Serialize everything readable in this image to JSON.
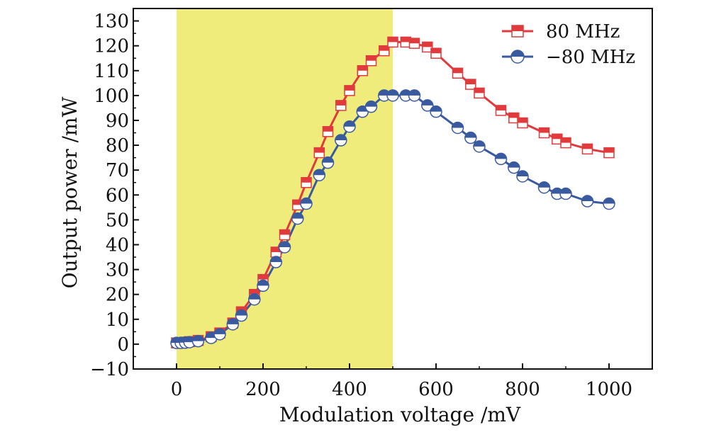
{
  "chart_data": {
    "type": "line",
    "title": "",
    "xlabel": "Modulation voltage /mV",
    "ylabel": "Output power /mW",
    "xlim": [
      -100,
      1100
    ],
    "ylim": [
      -10,
      135
    ],
    "xticks": [
      0,
      200,
      400,
      600,
      800,
      1000
    ],
    "yticks": [
      -10,
      0,
      10,
      20,
      30,
      40,
      50,
      60,
      70,
      80,
      90,
      100,
      110,
      120,
      130
    ],
    "grid": false,
    "legend_position": "top-right",
    "shaded_region": {
      "x_start": 0,
      "x_end": 500,
      "color": "#f0ec7c"
    },
    "series": [
      {
        "name": "80 MHz",
        "color": "#e03a3c",
        "marker": "square",
        "x": [
          0,
          10,
          20,
          30,
          50,
          80,
          100,
          130,
          150,
          180,
          200,
          230,
          250,
          280,
          300,
          330,
          350,
          380,
          400,
          430,
          450,
          480,
          500,
          530,
          550,
          580,
          600,
          650,
          680,
          700,
          750,
          780,
          800,
          850,
          880,
          900,
          950,
          1000
        ],
        "values": [
          0.5,
          0.5,
          0.8,
          1,
          1.5,
          3,
          4.5,
          8.5,
          13,
          20,
          26,
          37,
          44,
          56,
          65,
          77,
          85.5,
          96,
          102,
          110,
          114,
          118,
          121.5,
          121.5,
          121,
          119.5,
          117,
          109,
          104.5,
          101,
          94,
          91,
          89,
          85,
          82.5,
          81,
          78.5,
          77
        ]
      },
      {
        "name": "−80 MHz",
        "color": "#3a5aa0",
        "marker": "circle-half",
        "x": [
          0,
          10,
          20,
          30,
          50,
          80,
          100,
          130,
          150,
          180,
          200,
          230,
          250,
          280,
          300,
          330,
          350,
          380,
          400,
          430,
          450,
          480,
          500,
          530,
          550,
          580,
          600,
          650,
          680,
          700,
          750,
          780,
          800,
          850,
          880,
          900,
          950,
          1000
        ],
        "values": [
          0.5,
          0.5,
          0.6,
          0.8,
          1.2,
          2.5,
          4,
          8,
          11.5,
          18,
          23.5,
          33,
          39,
          50.5,
          56.5,
          68,
          73,
          82,
          87.5,
          93.5,
          95.5,
          100,
          100,
          100,
          100,
          96,
          93.5,
          87,
          83,
          79.5,
          74.5,
          71,
          67.5,
          63,
          60.5,
          60.5,
          57.5,
          56.5
        ]
      }
    ]
  }
}
